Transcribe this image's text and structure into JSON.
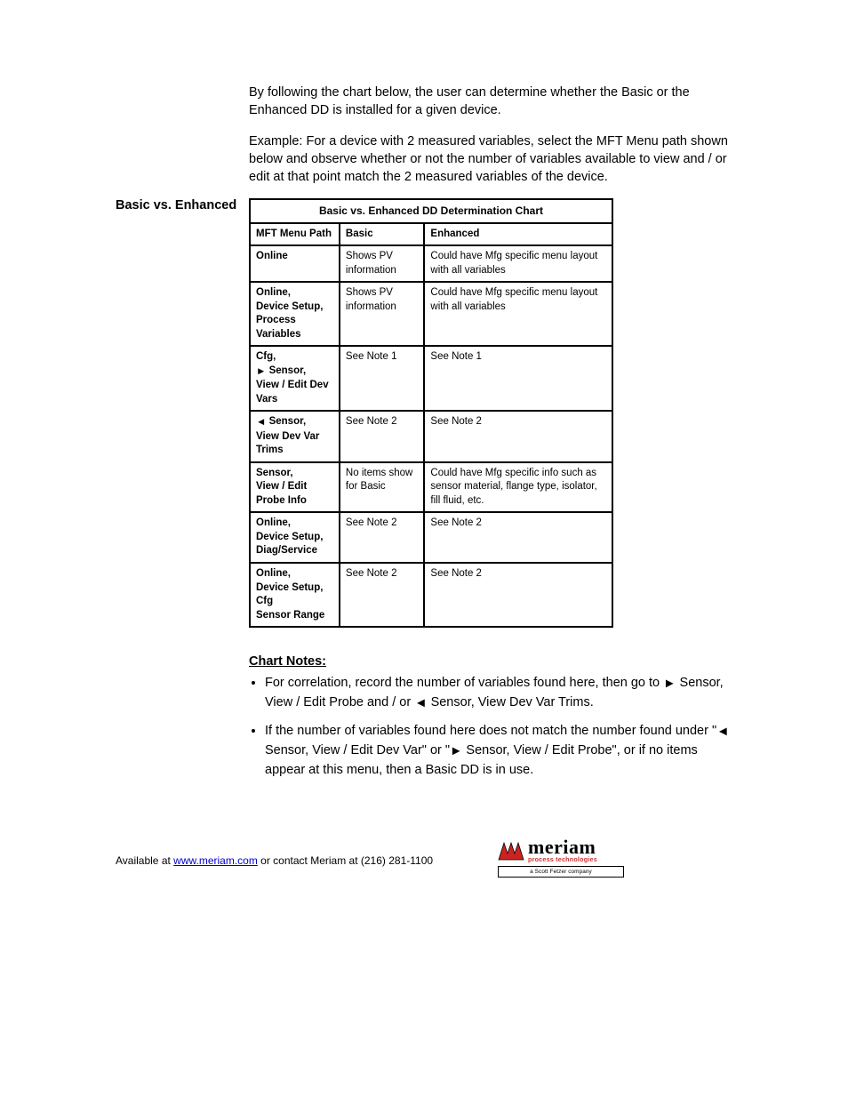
{
  "intro": {
    "p1": "By following the chart below, the user can determine whether the Basic or the Enhanced DD is installed for a given device.",
    "p2": "Example:  For a device with 2 measured variables, select the MFT Menu path shown below and observe whether or not the number of variables available to view and / or edit at that point match the 2 measured variables of the device."
  },
  "section_label": "Basic vs. Enhanced",
  "chart": {
    "title": "Basic vs. Enhanced DD Determination Chart",
    "head": {
      "c1": "MFT Menu Path",
      "c2": "Basic",
      "c3": "Enhanced"
    },
    "rows": [
      {
        "path_lines": [
          "Online"
        ],
        "basic": "Shows PV information",
        "enh": "Could have Mfg specific menu layout with all variables"
      },
      {
        "path_lines": [
          "Online,",
          "Device Setup,",
          "Process Variables"
        ],
        "basic": "Shows PV information",
        "enh": "Could have Mfg specific menu layout with all variables"
      },
      {
        "path_lines": [
          "Cfg,",
          "  ► Sensor,",
          "View / Edit Dev Vars"
        ],
        "basic": "See Note 1",
        "enh": "See Note 1"
      },
      {
        "path_lines": [
          "◄ Sensor,",
          "View Dev Var Trims"
        ],
        "basic": "See Note 2",
        "enh": "See Note 2"
      },
      {
        "path_lines": [
          "Sensor,",
          "View / Edit Probe Info"
        ],
        "basic": "No items show for Basic",
        "enh": "Could have Mfg specific info such as sensor material, flange type, isolator, fill fluid, etc."
      },
      {
        "path_lines": [
          "Online,",
          "Device Setup,",
          "Diag/Service"
        ],
        "basic": "See Note 2",
        "enh": "See Note 2"
      },
      {
        "path_lines": [
          "Online,",
          "Device Setup, Cfg",
          "Sensor Range"
        ],
        "basic": "See Note 2",
        "enh": "See Note 2"
      }
    ]
  },
  "notes": {
    "heading": "Chart Notes:",
    "items": [
      {
        "text_parts": [
          "For correlation, record the number of variables found here, then go to ",
          "► Sensor, View / Edit Probe and / or ",
          "◄ Sensor, View Dev Var Trims."
        ]
      },
      {
        "text_parts": [
          "If the number of variables found here does not match the number found under \"◄ Sensor, View / Edit Dev Var\" or \"► Sensor, View / Edit Probe\", or if no items appear at this menu, then a Basic DD is in use."
        ]
      }
    ]
  },
  "footer": {
    "prefix": "Available at ",
    "url": "www.meriam.com",
    "suffix": " or contact Meriam at (216) 281-1100",
    "logo": {
      "brand": "meriam",
      "sub": "process technologies",
      "badge": "a Scott Fetzer company"
    }
  },
  "icons": {
    "right_triangle": "►",
    "left_triangle": "◄"
  }
}
